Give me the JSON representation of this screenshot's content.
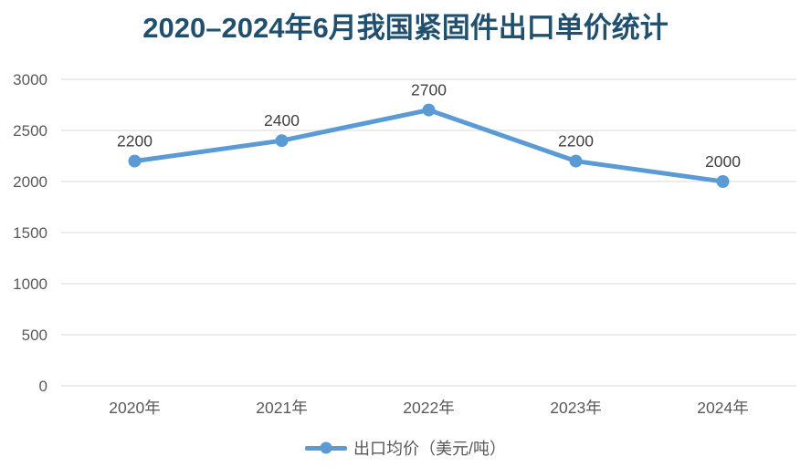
{
  "chart_data": {
    "type": "line",
    "title": "2020–2024年6月我国紧固件出口单价统计",
    "categories": [
      "2020年",
      "2021年",
      "2022年",
      "2023年",
      "2024年"
    ],
    "series": [
      {
        "name": "出口均价（美元/吨）",
        "values": [
          2200,
          2400,
          2700,
          2200,
          2000
        ]
      }
    ],
    "data_labels": [
      2200,
      2400,
      2700,
      2200,
      2000
    ],
    "ylim": [
      0,
      3000
    ],
    "yticks": [
      0,
      500,
      1000,
      1500,
      2000,
      2500,
      3000
    ],
    "grid": true,
    "legend_position": "bottom",
    "colors": {
      "line": "#5B9BD5",
      "title": "#21506F",
      "axis_text": "#595959",
      "data_label": "#404040",
      "gridline": "#D9D9D9",
      "background": "#FFFFFF"
    }
  },
  "legend": {
    "label": "出口均价（美元/吨）"
  }
}
